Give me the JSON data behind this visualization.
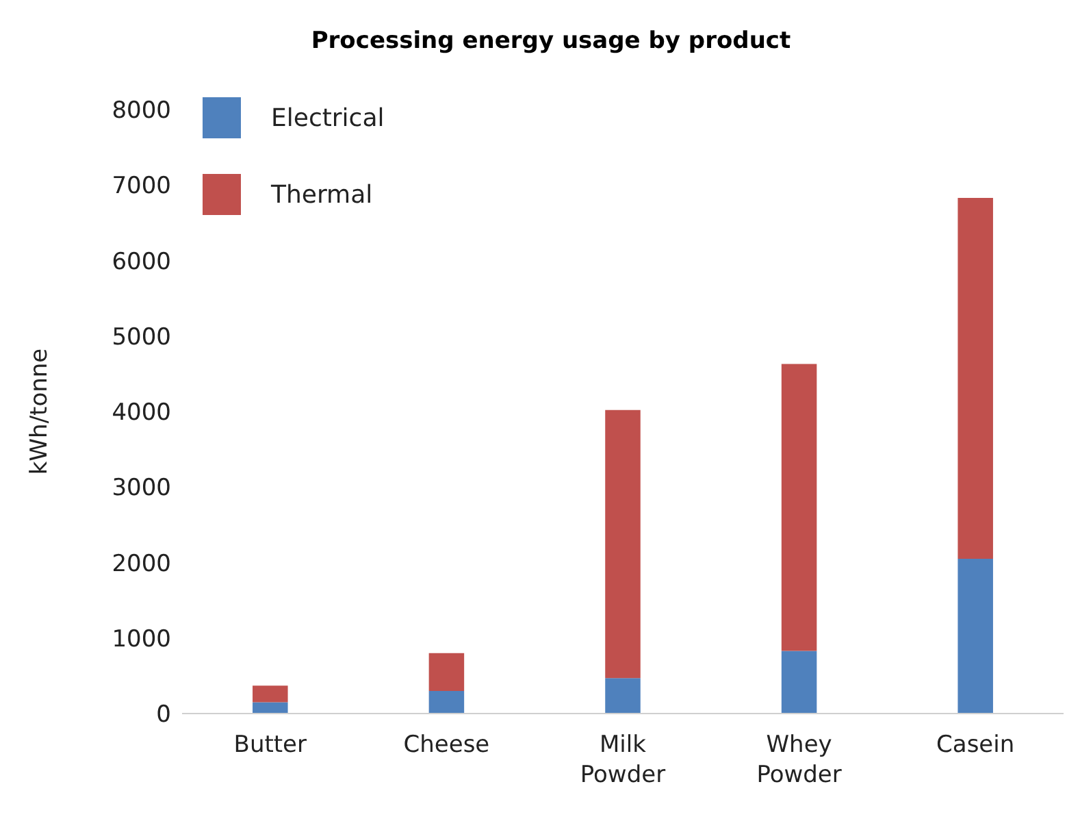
{
  "chart_data": {
    "type": "bar",
    "title": "Processing energy usage by product",
    "ylabel": "kWh/tonne",
    "categories": [
      "Butter",
      "Cheese",
      "Milk Powder",
      "Whey Powder",
      "Casein"
    ],
    "series": [
      {
        "name": "Electrical",
        "color": "#4f81bd",
        "values": [
          150,
          300,
          470,
          830,
          2050
        ]
      },
      {
        "name": "Thermal",
        "color": "#c0504d",
        "values": [
          220,
          500,
          3550,
          3800,
          4780
        ]
      }
    ],
    "stacked": true,
    "ylim": [
      0,
      8000
    ],
    "yticks": [
      0,
      1000,
      2000,
      3000,
      4000,
      5000,
      6000,
      7000,
      8000
    ],
    "grid": false,
    "legend": "top left"
  }
}
